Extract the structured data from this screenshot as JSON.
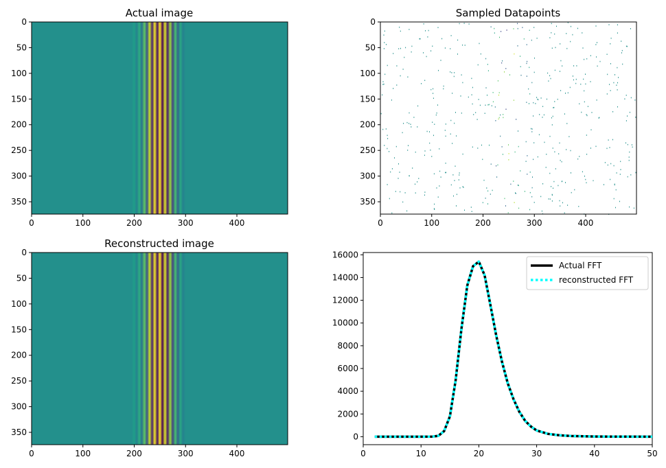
{
  "chart_data": [
    {
      "type": "heatmap",
      "title": "Actual image",
      "xlim": [
        0,
        499
      ],
      "ylim": [
        374,
        0
      ],
      "xticks": [
        "0",
        "100",
        "200",
        "300",
        "400"
      ],
      "yticks": [
        "0",
        "50",
        "100",
        "150",
        "200",
        "250",
        "300",
        "350"
      ],
      "colormap": "viridis",
      "description_values": {
        "background_value": 0.5,
        "stripe_profile": {
          "x": [
            195,
            200,
            205,
            210,
            215,
            220,
            225,
            230,
            235,
            240,
            245,
            250,
            255,
            260,
            265,
            270,
            275,
            280,
            285,
            290,
            295,
            300
          ],
          "v": [
            0.5,
            0.55,
            0.45,
            0.62,
            0.38,
            0.75,
            0.25,
            0.92,
            0.1,
            0.98,
            0.05,
            1.0,
            0.02,
            0.95,
            0.08,
            0.85,
            0.2,
            0.7,
            0.32,
            0.6,
            0.44,
            0.5
          ]
        }
      }
    },
    {
      "type": "scatter",
      "title": "Sampled Datapoints",
      "xlim": [
        0,
        499
      ],
      "ylim": [
        374,
        0
      ],
      "xticks": [
        "0",
        "100",
        "200",
        "300",
        "400"
      ],
      "yticks": [
        "0",
        "50",
        "100",
        "150",
        "200",
        "250",
        "300",
        "350"
      ],
      "sample_count": 500
    },
    {
      "type": "heatmap",
      "title": "Reconstructed image",
      "xlim": [
        0,
        499
      ],
      "ylim": [
        374,
        0
      ],
      "xticks": [
        "0",
        "100",
        "200",
        "300",
        "400"
      ],
      "yticks": [
        "0",
        "50",
        "100",
        "150",
        "200",
        "250",
        "300",
        "350"
      ],
      "colormap": "viridis"
    },
    {
      "type": "line",
      "title": "",
      "xlim": [
        0,
        50
      ],
      "ylim": [
        -700,
        16200
      ],
      "xticks": [
        "0",
        "10",
        "20",
        "30",
        "40",
        "50"
      ],
      "yticks": [
        "0",
        "2000",
        "4000",
        "6000",
        "8000",
        "10000",
        "12000",
        "14000",
        "16000"
      ],
      "grid": false,
      "legend_position": "top-right",
      "x": [
        2,
        4,
        6,
        8,
        10,
        12,
        13,
        14,
        15,
        16,
        17,
        18,
        19,
        20,
        21,
        22,
        23,
        24,
        25,
        26,
        27,
        28,
        29,
        30,
        32,
        34,
        36,
        40,
        45,
        50
      ],
      "series": [
        {
          "name": "Actual FFT",
          "color": "#000000",
          "style": "solid",
          "values": [
            0,
            0,
            0,
            0,
            0,
            10,
            80,
            500,
            1800,
            5000,
            9500,
            13300,
            15000,
            15400,
            14200,
            11600,
            8900,
            6600,
            4700,
            3300,
            2200,
            1400,
            900,
            550,
            250,
            120,
            60,
            20,
            5,
            0
          ]
        },
        {
          "name": "reconstructed FFT",
          "color": "#00ffff",
          "style": "dotted",
          "values": [
            0,
            0,
            0,
            0,
            0,
            10,
            80,
            500,
            1800,
            5000,
            9500,
            13300,
            15000,
            15400,
            14200,
            11600,
            8900,
            6600,
            4700,
            3300,
            2200,
            1400,
            900,
            550,
            250,
            120,
            60,
            20,
            5,
            0
          ]
        }
      ]
    }
  ]
}
